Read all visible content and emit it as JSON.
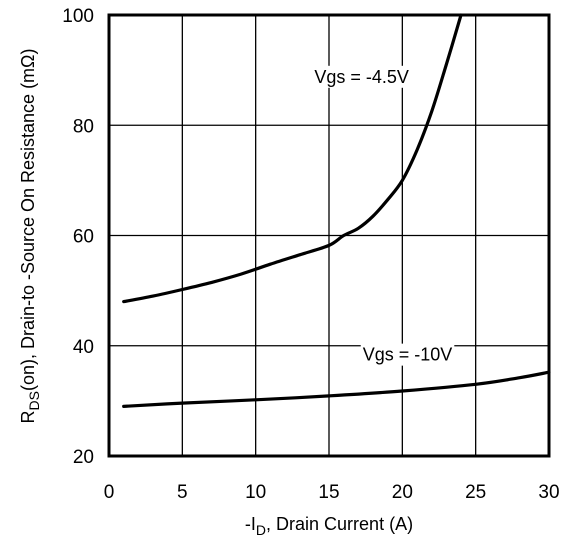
{
  "chart_data": {
    "type": "line",
    "xlabel": {
      "prefix": "-I",
      "sub": "D",
      "rest": ", Drain Current (A)"
    },
    "ylabel": {
      "prefix": "R",
      "sub": "DS",
      "rest": "(on),  Drain-to -Source On Resistance (mΩ)"
    },
    "xlim": [
      0,
      30
    ],
    "ylim": [
      20,
      100
    ],
    "xticks": [
      0,
      5,
      10,
      15,
      20,
      25,
      30
    ],
    "yticks": [
      20,
      40,
      60,
      80,
      100
    ],
    "xtick_labels": [
      "0",
      "5",
      "10",
      "15",
      "20",
      "25",
      "30"
    ],
    "ytick_labels": [
      "20",
      "40",
      "60",
      "80",
      "100"
    ],
    "grid": true,
    "series": [
      {
        "name": "Vgs = -4.5V",
        "x": [
          1,
          3,
          5,
          7,
          9,
          11,
          13,
          15,
          16,
          17,
          18,
          19,
          20,
          21,
          22,
          23,
          24
        ],
        "y": [
          48,
          49,
          50.2,
          51.5,
          53,
          54.8,
          56.5,
          58.2,
          60,
          61.3,
          63.5,
          66.5,
          70,
          75.5,
          82.5,
          91,
          100
        ]
      },
      {
        "name": "Vgs = -10V",
        "x": [
          1,
          5,
          10,
          15,
          20,
          25,
          28,
          30
        ],
        "y": [
          29,
          29.6,
          30.2,
          30.9,
          31.8,
          33,
          34.2,
          35.2
        ]
      }
    ],
    "annotations": [
      {
        "text": "Vgs = -4.5V",
        "x": 14,
        "y": 87.7
      },
      {
        "text": "Vgs = -10V",
        "x": 17.3,
        "y": 37.3
      }
    ]
  }
}
